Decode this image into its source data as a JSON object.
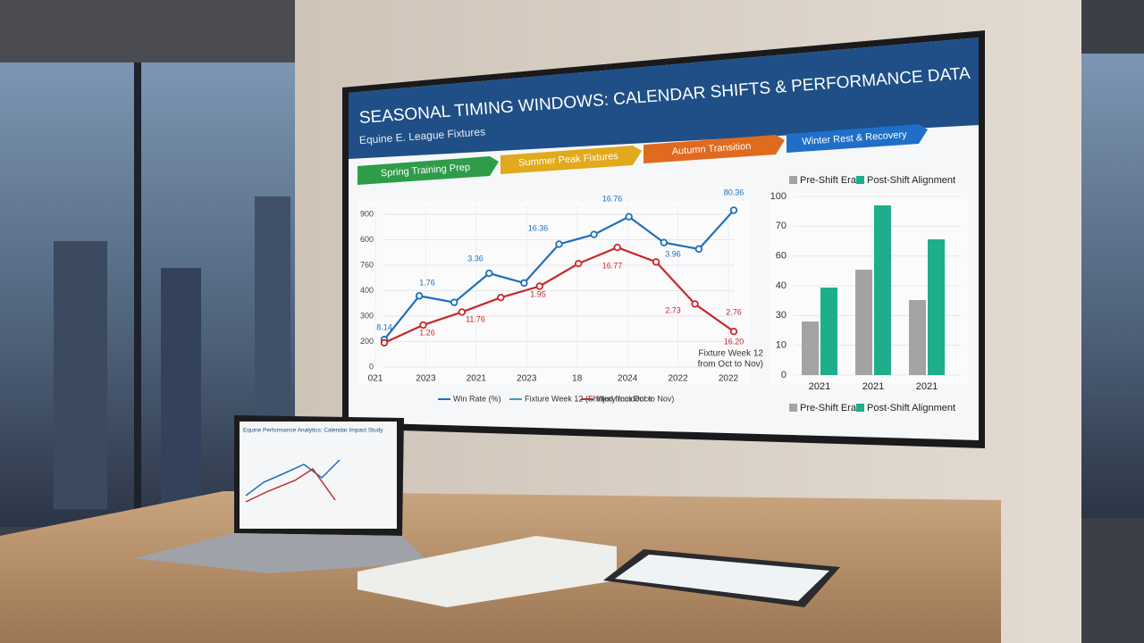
{
  "screen": {
    "title": "SEASONAL TIMING WINDOWS: CALENDAR SHIFTS & PERFORMANCE DATA",
    "subtitle": "Equine E. League Fixtures",
    "phases": [
      "Spring Training Prep",
      "Summer Peak Fixtures",
      "Autumn Transition",
      "Winter Rest & Recovery"
    ],
    "line_chart": {
      "type": "line",
      "y_labels": [
        "900",
        "600",
        "760",
        "400",
        "300",
        "200",
        "0"
      ],
      "x_labels": [
        "021",
        "2023",
        "2021",
        "2023",
        "18",
        "2024",
        "2022",
        "2022"
      ],
      "ylim": [
        0,
        1000
      ],
      "series": [
        {
          "name": "Win Rate (%)",
          "color": "#1f6fb8",
          "values": [
            170,
            440,
            400,
            580,
            520,
            760,
            820,
            930,
            770,
            730,
            970
          ]
        },
        {
          "name": "Fixture Week 12 (Shifted from Oct to Nov)",
          "color": "#3a9bc8",
          "values": []
        },
        {
          "name": "Injury Incidence",
          "color": "#c8282a",
          "values": [
            150,
            260,
            340,
            430,
            500,
            640,
            740,
            650,
            390,
            220
          ]
        }
      ],
      "point_labels": [
        "8.14",
        "1.76",
        "3.36",
        "16.36",
        "16.76",
        "80.36",
        "3.96",
        "1.26",
        "11.76",
        "1.95",
        "16.77",
        "2.73",
        "2.76",
        "16.20"
      ],
      "annotation": [
        "Fixture Week 12",
        "from Oct to Nov)"
      ]
    },
    "bar_chart": {
      "type": "bar",
      "y_labels": [
        "100",
        "70",
        "60",
        "40",
        "30",
        "10",
        "0"
      ],
      "categories": [
        "2021",
        "2021",
        "2021"
      ],
      "ylim": [
        0,
        100
      ],
      "series": [
        {
          "name": "Pre-Shift Era",
          "color": "#a3a3a3",
          "values": [
            30,
            59,
            42
          ]
        },
        {
          "name": "Post-Shift Alignment",
          "color": "#1fae8c",
          "values": [
            49,
            95,
            76
          ]
        }
      ]
    }
  },
  "laptop": {
    "title": "Equine Performance Analytics: Calendar Impact Study"
  }
}
